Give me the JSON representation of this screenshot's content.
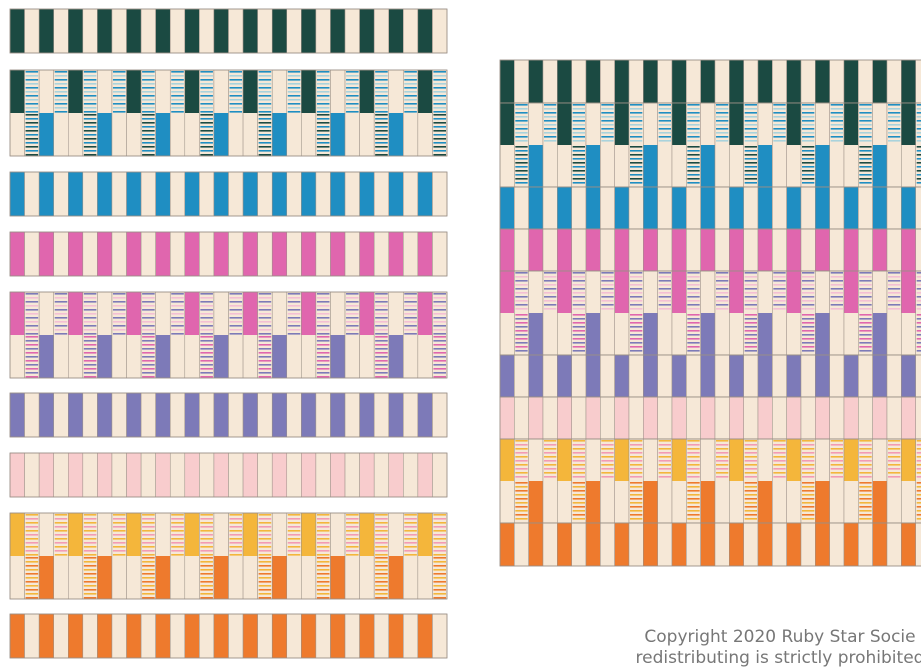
{
  "palette": {
    "cream": "#f6e8d7",
    "dark_green": "#1b4a42",
    "teal_blue": "#1f8ec2",
    "pale_aqua": "#a9d3dc",
    "magenta": "#e066ae",
    "light_pink": "#f4bfd4",
    "periwinkle": "#7d7ab8",
    "blush": "#f8cccd",
    "orange": "#ee7a2d",
    "gold": "#f4b63b",
    "coral_pink": "#f39bb3",
    "seam": "#9a8f86"
  },
  "rows": [
    {
      "type": "plain",
      "color": "dark_green"
    },
    {
      "type": "pieced",
      "top": "dark_green",
      "bottom": "teal_blue",
      "stripe": [
        "pale_aqua",
        "teal_blue",
        "dark_green"
      ]
    },
    {
      "type": "plain",
      "color": "teal_blue"
    },
    {
      "type": "plain",
      "color": "magenta"
    },
    {
      "type": "pieced",
      "top": "magenta",
      "bottom": "periwinkle",
      "stripe": [
        "light_pink",
        "periwinkle",
        "magenta"
      ]
    },
    {
      "type": "plain",
      "color": "periwinkle"
    },
    {
      "type": "plain",
      "color": "blush"
    },
    {
      "type": "pieced",
      "top": "gold",
      "bottom": "orange",
      "stripe": [
        "coral_pink",
        "gold",
        "orange"
      ]
    },
    {
      "type": "plain",
      "color": "orange"
    }
  ],
  "copyright": {
    "line1": "Copyright 2020 Ruby Star Socie",
    "line2": "redistributing is strictly prohibited"
  }
}
